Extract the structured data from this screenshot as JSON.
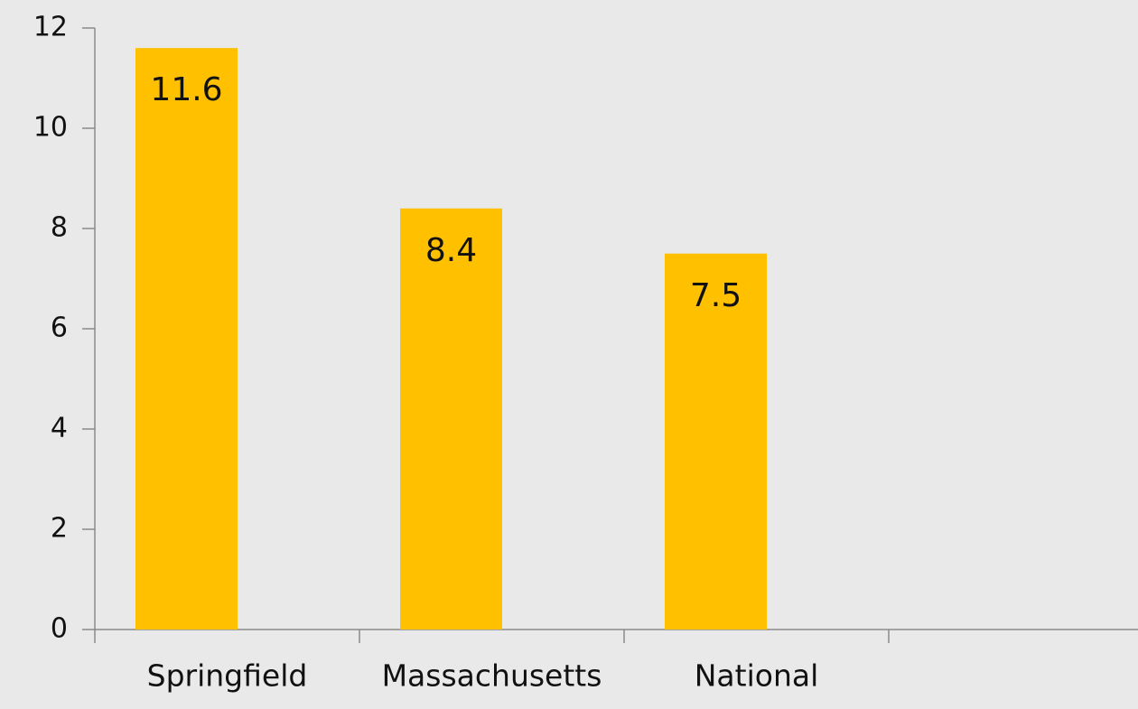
{
  "chart_data": {
    "type": "bar",
    "categories": [
      "Springfield",
      "Massachusetts",
      "National",
      null
    ],
    "values": [
      11.6,
      8.4,
      7.5,
      null
    ],
    "color": "#ffc000",
    "ylim": [
      0,
      12
    ],
    "yticks": [
      0,
      2,
      4,
      6,
      8,
      10,
      12
    ],
    "grid": false
  }
}
